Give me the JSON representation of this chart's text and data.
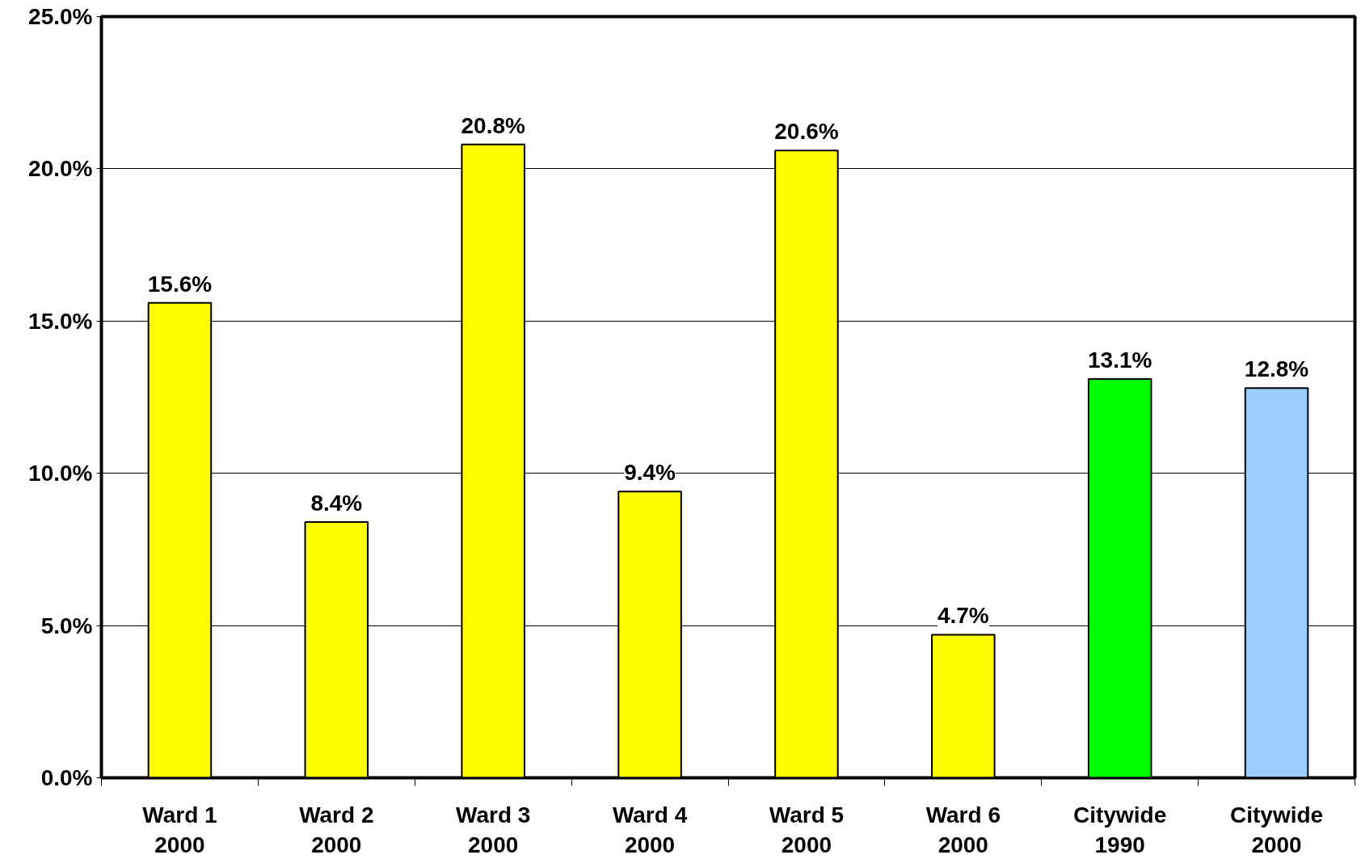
{
  "chart_data": {
    "type": "bar",
    "categories": [
      "Ward 1\n2000",
      "Ward 2\n2000",
      "Ward 3\n2000",
      "Ward 4\n2000",
      "Ward 5\n2000",
      "Ward 6\n2000",
      "Citywide\n1990",
      "Citywide\n2000"
    ],
    "values": [
      15.6,
      8.4,
      20.8,
      9.4,
      20.6,
      4.7,
      13.1,
      12.8
    ],
    "colors": [
      "#ffff00",
      "#ffff00",
      "#ffff00",
      "#ffff00",
      "#ffff00",
      "#ffff00",
      "#00ff00",
      "#99ccff"
    ],
    "value_labels": [
      "15.6%",
      "8.4%",
      "20.8%",
      "9.4%",
      "20.6%",
      "4.7%",
      "13.1%",
      "12.8%"
    ],
    "ylim": [
      0,
      25
    ],
    "yticks": [
      {
        "value": 0,
        "label": "0.0%"
      },
      {
        "value": 5,
        "label": "5.0%"
      },
      {
        "value": 10,
        "label": "10.0%"
      },
      {
        "value": 15,
        "label": "15.0%"
      },
      {
        "value": 20,
        "label": "20.0%"
      },
      {
        "value": 25,
        "label": "25.0%"
      }
    ],
    "grid": "y"
  }
}
